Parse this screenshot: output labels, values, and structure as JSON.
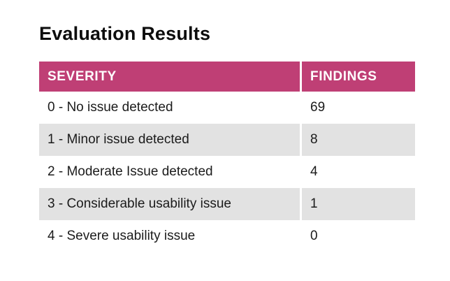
{
  "page": {
    "title": "Evaluation Results"
  },
  "table": {
    "columns": [
      {
        "label": "SEVERITY"
      },
      {
        "label": "FINDINGS"
      }
    ],
    "rows": [
      {
        "severity": "0 - No issue detected",
        "findings": 69
      },
      {
        "severity": "1 - Minor issue detected",
        "findings": 8
      },
      {
        "severity": "2 - Moderate Issue detected",
        "findings": 4
      },
      {
        "severity": "3 - Considerable usability issue",
        "findings": 1
      },
      {
        "severity": "4 - Severe usability issue",
        "findings": 0
      }
    ]
  },
  "colors": {
    "header_bg": "#BF3F75",
    "header_text": "#FFFFFF",
    "row_alt_bg": "#E2E2E2",
    "body_text": "#1B1B1B"
  }
}
